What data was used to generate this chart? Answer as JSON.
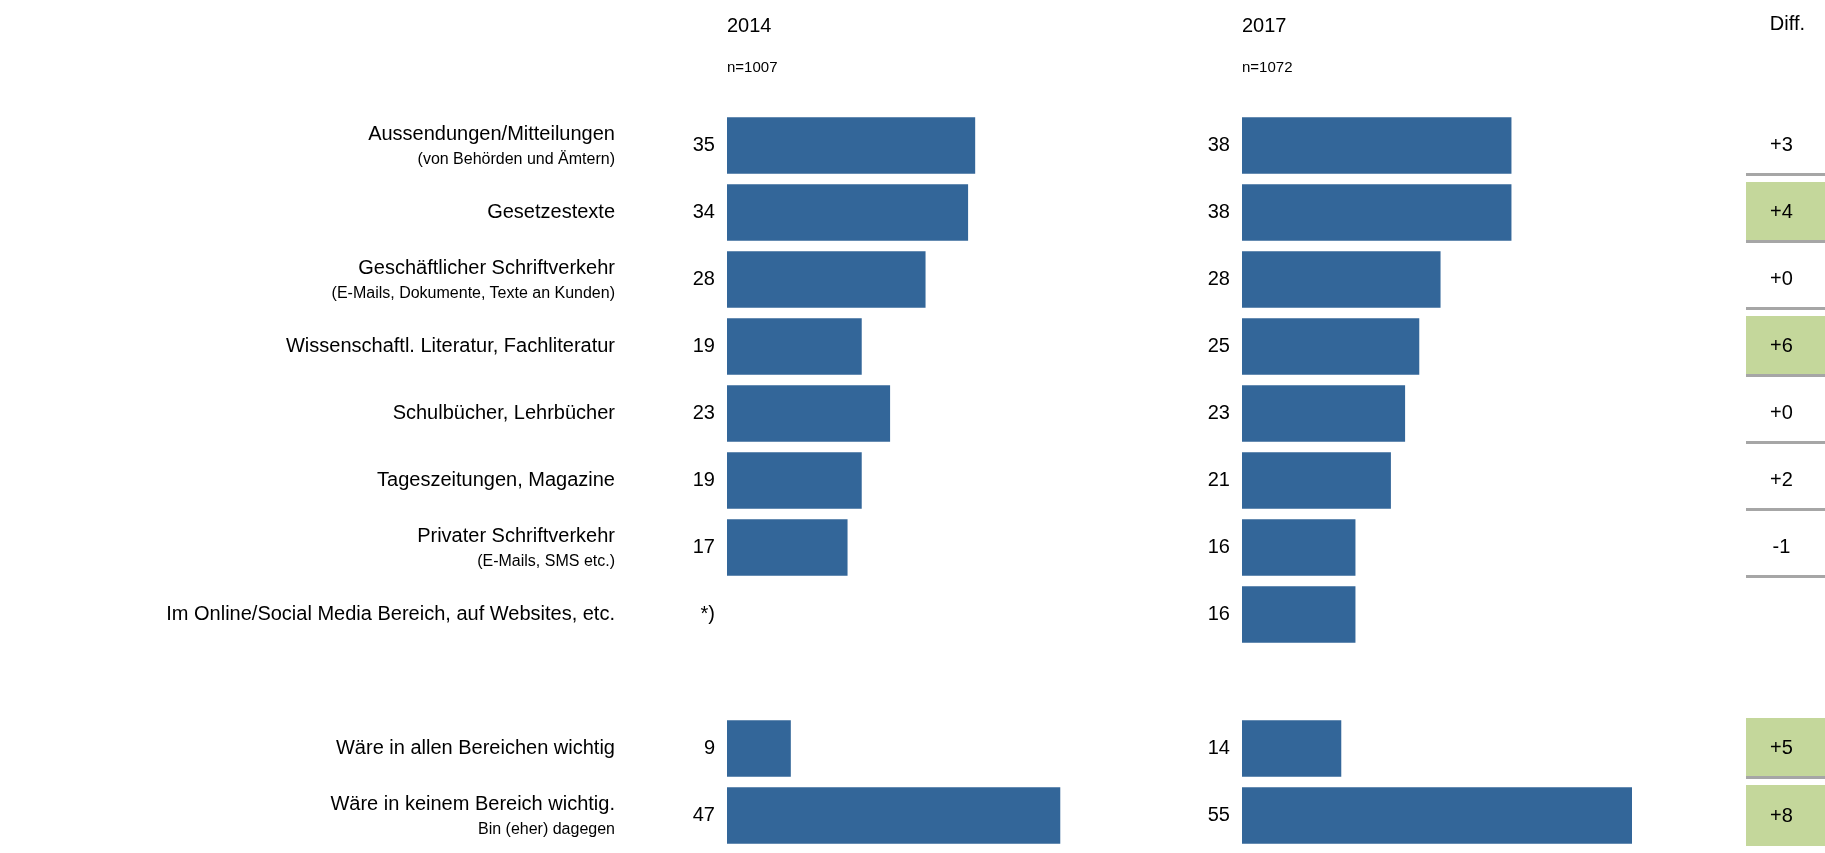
{
  "chart_data": [
    {
      "type": "bar",
      "orientation": "horizontal",
      "title": "2014",
      "subtitle": "n=1007",
      "categories": [
        "Aussendungen/Mitteilungen\n(von Behörden und Ämtern)",
        "Gesetzestexte",
        "Geschäftlicher Schriftverkehr\n(E-Mails, Dokumente, Texte an Kunden)",
        "Wissenschaftl. Literatur, Fachliteratur",
        "Schulbücher, Lehrbücher",
        "Tageszeitungen, Magazine",
        "Privater Schriftverkehr\n(E-Mails, SMS etc.)",
        "Im Online/Social Media Bereich, auf Websites, etc.",
        null,
        "Wäre in allen Bereichen wichtig",
        "Wäre in keinem Bereich wichtig.\nBin (eher) dagegen"
      ],
      "values": [
        35,
        34,
        28,
        19,
        23,
        19,
        17,
        null,
        null,
        9,
        47
      ],
      "color": "#336699",
      "value_labels": [
        "35",
        "34",
        "28",
        "19",
        "23",
        "19",
        "17",
        "*)",
        null,
        "9",
        "47"
      ]
    },
    {
      "type": "bar",
      "orientation": "horizontal",
      "title": "2017",
      "subtitle": "n=1072",
      "tick_labels": false,
      "values": [
        38,
        38,
        28,
        25,
        23,
        21,
        16,
        16,
        null,
        14,
        55
      ],
      "color": "#336699",
      "value_labels": [
        "38",
        "38",
        "28",
        "25",
        "23",
        "21",
        "16",
        "16",
        null,
        "14",
        "55"
      ]
    },
    {
      "type": "other",
      "title": "Diff.",
      "values": [
        3,
        4,
        0,
        6,
        0,
        2,
        -1,
        null,
        null,
        5,
        8
      ],
      "value_labels": [
        "+3",
        "+4",
        "+0",
        "+6",
        "+0",
        "+2",
        "-1",
        null,
        null,
        "+5",
        "+8"
      ],
      "colors": [
        "#ffffff",
        "#c4d79b",
        "#ffffff",
        "#c4d79b",
        "#ffffff",
        "#ffffff",
        "#ffffff",
        null,
        null,
        "#c4d79b",
        "#c4d79b"
      ]
    }
  ]
}
